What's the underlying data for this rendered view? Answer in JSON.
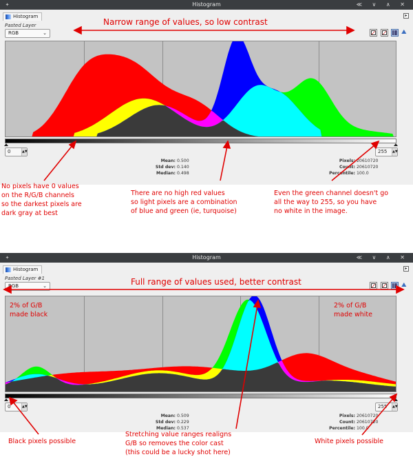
{
  "top": {
    "window_title": "Histogram",
    "window_controls": "≪ ∨ ∧ ✕",
    "tab_label": "Histogram",
    "layer_name": "Pasted Layer",
    "channel": "RGB",
    "range_low": "0",
    "range_high": "255",
    "stats_left": [
      {
        "label": "Mean:",
        "value": "0.500"
      },
      {
        "label": "Std dev:",
        "value": "0.140"
      },
      {
        "label": "Median:",
        "value": "0.498"
      }
    ],
    "stats_right": [
      {
        "label": "Pixels:",
        "value": "20610720"
      },
      {
        "label": "Count:",
        "value": "20610720"
      },
      {
        "label": "Percentile:",
        "value": "100.0"
      }
    ]
  },
  "bottom": {
    "window_title": "Histogram",
    "window_controls": "≪ ∨ ∧ ✕",
    "tab_label": "Histogram",
    "layer_name": "Pasted Layer #1",
    "channel": "RGB",
    "range_low": "0",
    "range_high": "255",
    "stats_left": [
      {
        "label": "Mean:",
        "value": "0.509"
      },
      {
        "label": "Std dev:",
        "value": "0.229"
      },
      {
        "label": "Median:",
        "value": "0.537"
      }
    ],
    "stats_right": [
      {
        "label": "Pixels:",
        "value": "20610720"
      },
      {
        "label": "Count:",
        "value": "20610720"
      },
      {
        "label": "Percentile:",
        "value": "100.0"
      }
    ]
  },
  "annotations": {
    "top_range": "Narrow range of values, so low contrast",
    "no_zero": "No pixels have 0 values\non the R/G/B channels\nso the darkest pixels are\ndark gray at best",
    "no_red": "There are no high red values\nso light pixels are a combination\nof blue and green (ie, turquoise)",
    "green_not_255": "Even the green channel doesn't go\nall the way to 255, so you have\nno white in the image.",
    "bottom_range": "Full range of values used, better contrast",
    "left_black": "2% of G/B\nmade black",
    "right_white": "2% of G/B\nmade white",
    "black_possible": "Black pixels possible",
    "stretch": "Stretching value ranges realigns\nG/B so removes the color cast\n(this could be a lucky shot here)",
    "white_possible": "White pixels possible"
  },
  "colors": {
    "annotation": "#e00000",
    "red": "#ff0000",
    "green": "#00ff00",
    "blue": "#0000ff",
    "cyan": "#00ffff",
    "magenta": "#ff00ff",
    "yellow": "#ffff00",
    "gray": "#3a3a3a",
    "background": "#c3c3c3"
  }
}
